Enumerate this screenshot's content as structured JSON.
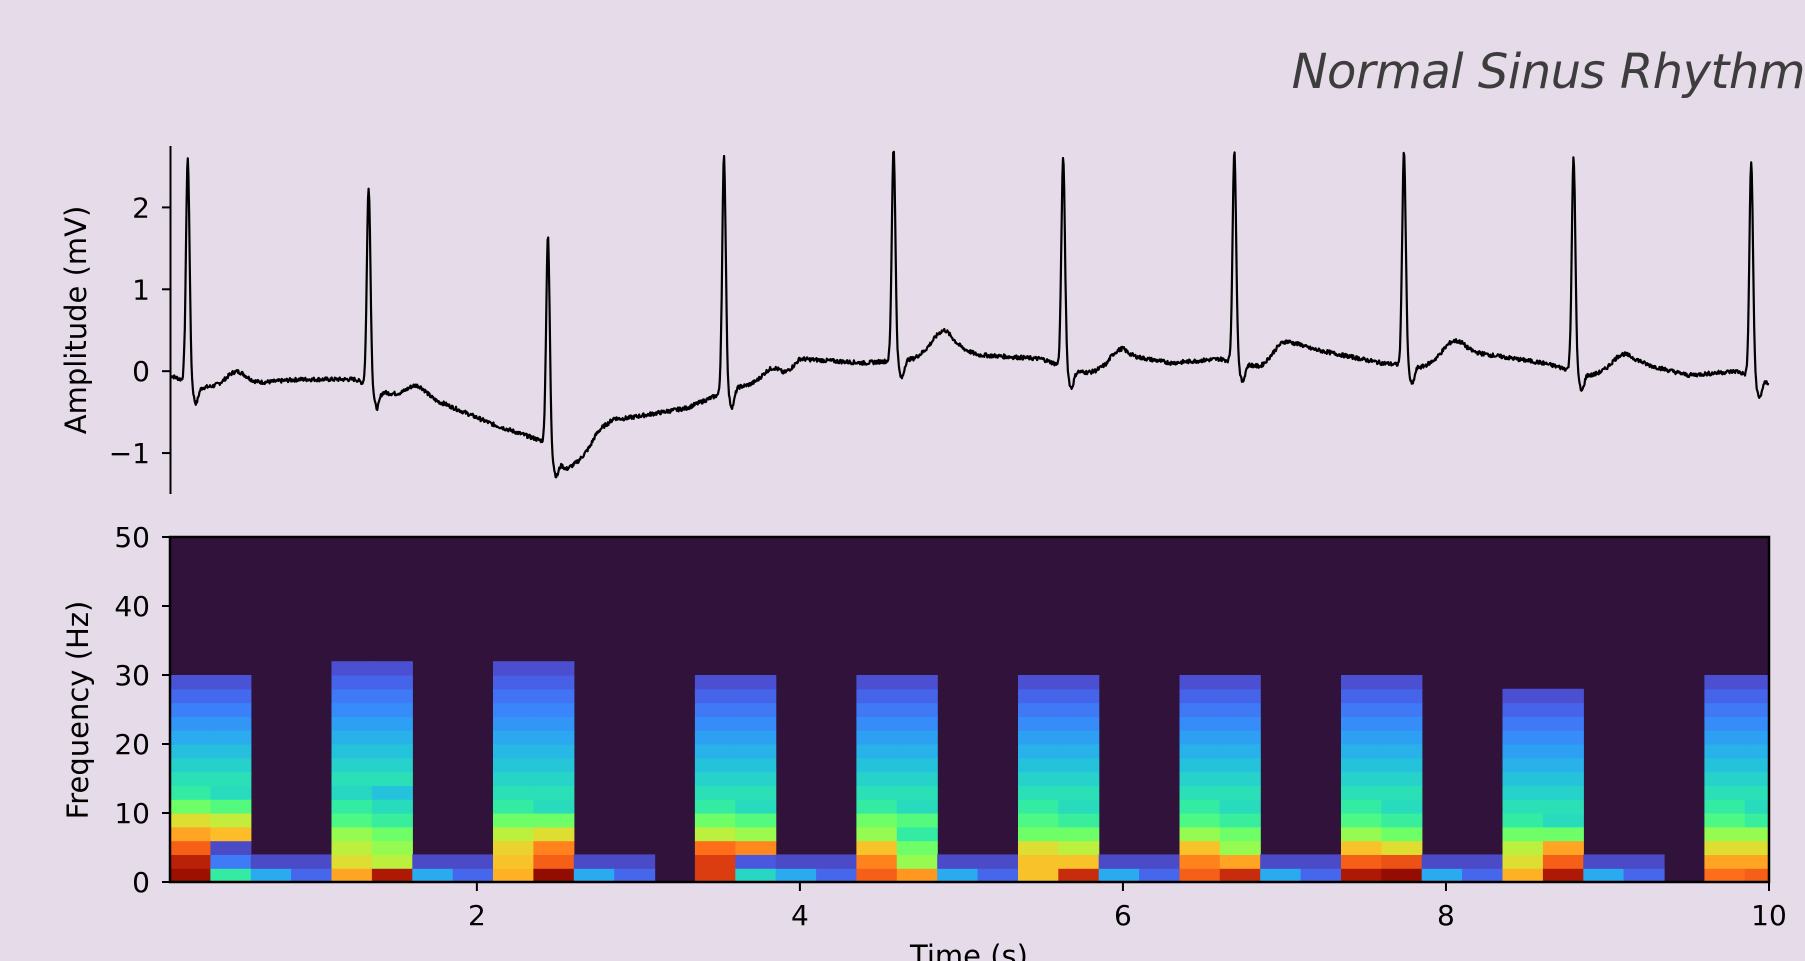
{
  "title": "Normal Sinus Rhythm",
  "chart_data": [
    {
      "type": "line",
      "title": "Normal Sinus Rhythm",
      "xlabel": "",
      "ylabel": "Amplitude (mV)",
      "xlim": [
        0.1,
        10
      ],
      "ylim": [
        -1.5,
        2.75
      ],
      "yticks": [
        -1,
        0,
        1,
        2
      ],
      "ytick_labels": [
        "−1",
        "0",
        "1",
        "2"
      ],
      "grid": false,
      "line_color": "#000000",
      "beats": [
        {
          "t": 0.21,
          "peak": 2.6,
          "base": 0.0
        },
        {
          "t": 1.33,
          "peak": 2.25,
          "base": -0.1
        },
        {
          "t": 2.44,
          "peak": 1.65,
          "base": -0.85
        },
        {
          "t": 3.53,
          "peak": 2.62,
          "base": -0.2
        },
        {
          "t": 4.58,
          "peak": 2.72,
          "base": 0.25
        },
        {
          "t": 5.63,
          "peak": 2.62,
          "base": 0.2
        },
        {
          "t": 6.69,
          "peak": 2.68,
          "base": 0.18
        },
        {
          "t": 7.74,
          "peak": 2.7,
          "base": 0.15
        },
        {
          "t": 8.79,
          "peak": 2.6,
          "base": 0.1
        },
        {
          "t": 9.89,
          "peak": 2.55,
          "base": 0.0
        }
      ],
      "baseline": [
        [
          0.1,
          -0.05
        ],
        [
          0.3,
          -0.2
        ],
        [
          0.6,
          -0.15
        ],
        [
          0.9,
          -0.1
        ],
        [
          1.25,
          -0.1
        ],
        [
          1.4,
          -0.25
        ],
        [
          1.8,
          -0.4
        ],
        [
          2.1,
          -0.65
        ],
        [
          2.4,
          -0.85
        ],
        [
          2.55,
          -1.2
        ],
        [
          2.7,
          -1.05
        ],
        [
          2.85,
          -0.6
        ],
        [
          3.3,
          -0.45
        ],
        [
          3.6,
          -0.2
        ],
        [
          3.9,
          -0.1
        ],
        [
          4.0,
          0.15
        ],
        [
          4.4,
          0.1
        ],
        [
          4.7,
          0.15
        ],
        [
          4.9,
          0.35
        ],
        [
          5.1,
          0.2
        ],
        [
          5.5,
          0.15
        ],
        [
          5.7,
          0.0
        ],
        [
          5.9,
          -0.05
        ],
        [
          6.0,
          0.2
        ],
        [
          6.3,
          0.1
        ],
        [
          6.6,
          0.15
        ],
        [
          6.85,
          0.05
        ],
        [
          7.1,
          0.3
        ],
        [
          7.6,
          0.1
        ],
        [
          7.85,
          0.05
        ],
        [
          8.1,
          0.25
        ],
        [
          8.6,
          0.1
        ],
        [
          8.9,
          -0.05
        ],
        [
          9.2,
          0.1
        ],
        [
          9.5,
          -0.05
        ],
        [
          9.8,
          0.0
        ],
        [
          10.0,
          -0.15
        ]
      ]
    },
    {
      "type": "heatmap",
      "xlabel": "Time (s)",
      "ylabel": "Frequency (Hz)",
      "xlim": [
        0.1,
        10
      ],
      "ylim": [
        0,
        50
      ],
      "xticks": [
        2,
        4,
        6,
        8,
        10
      ],
      "xtick_labels": [
        "2",
        "4",
        "6",
        "8",
        "10"
      ],
      "yticks": [
        0,
        10,
        20,
        30,
        40,
        50
      ],
      "ytick_labels": [
        "0",
        "10",
        "20",
        "30",
        "40",
        "50"
      ],
      "colormap": "turbo",
      "background_color": "#30123b",
      "time_bin_width_s": 0.25,
      "freq_bin_width_hz": 2,
      "burst_pairs": [
        {
          "t_start": 0.1,
          "top_hz": 30,
          "low_power": [
            0.95,
            0.9,
            0.8,
            0.7,
            0.6,
            0.45,
            0.35
          ],
          "col2": [
            0.35,
            0.15,
            0.08
          ]
        },
        {
          "t_start": 1.1,
          "top_hz": 32,
          "low_power": [
            0.7,
            0.6,
            0.55,
            0.5,
            0.4,
            0.35,
            0.3
          ],
          "col2": [
            0.92,
            0.55,
            0.5,
            0.45
          ]
        },
        {
          "t_start": 2.1,
          "top_hz": 32,
          "low_power": [
            0.68,
            0.65,
            0.62,
            0.55,
            0.45,
            0.35
          ],
          "col2": [
            0.98,
            0.8,
            0.75,
            0.6,
            0.45
          ]
        },
        {
          "t_start": 3.35,
          "top_hz": 30,
          "low_power": [
            0.85,
            0.85,
            0.78,
            0.55,
            0.45,
            0.35
          ],
          "col2": [
            0.3,
            0.1
          ]
        },
        {
          "t_start": 4.35,
          "top_hz": 30,
          "low_power": [
            0.8,
            0.75,
            0.65,
            0.5,
            0.45,
            0.35
          ],
          "col2": [
            0.72,
            0.5,
            0.45,
            0.35
          ]
        },
        {
          "t_start": 5.35,
          "top_hz": 29,
          "low_power": [
            0.65,
            0.65,
            0.6,
            0.45,
            0.4,
            0.35
          ],
          "col2": [
            0.88,
            0.65,
            0.55,
            0.45
          ]
        },
        {
          "t_start": 6.35,
          "top_hz": 30,
          "low_power": [
            0.8,
            0.75,
            0.65,
            0.5,
            0.4,
            0.35
          ],
          "col2": [
            0.88,
            0.7,
            0.5,
            0.45
          ]
        },
        {
          "t_start": 7.35,
          "top_hz": 30,
          "low_power": [
            0.92,
            0.8,
            0.65,
            0.5,
            0.4,
            0.35
          ],
          "col2": [
            0.97,
            0.82,
            0.6,
            0.45
          ]
        },
        {
          "t_start": 8.35,
          "top_hz": 27,
          "low_power": [
            0.68,
            0.6,
            0.55,
            0.45,
            0.35
          ],
          "col2": [
            0.92,
            0.8,
            0.7,
            0.45
          ]
        },
        {
          "t_start": 9.6,
          "top_hz": 30,
          "low_power": [
            0.78,
            0.7,
            0.6,
            0.5,
            0.4,
            0.35
          ],
          "col2": [
            0.8,
            0.7,
            0.6,
            0.5
          ]
        }
      ]
    }
  ]
}
